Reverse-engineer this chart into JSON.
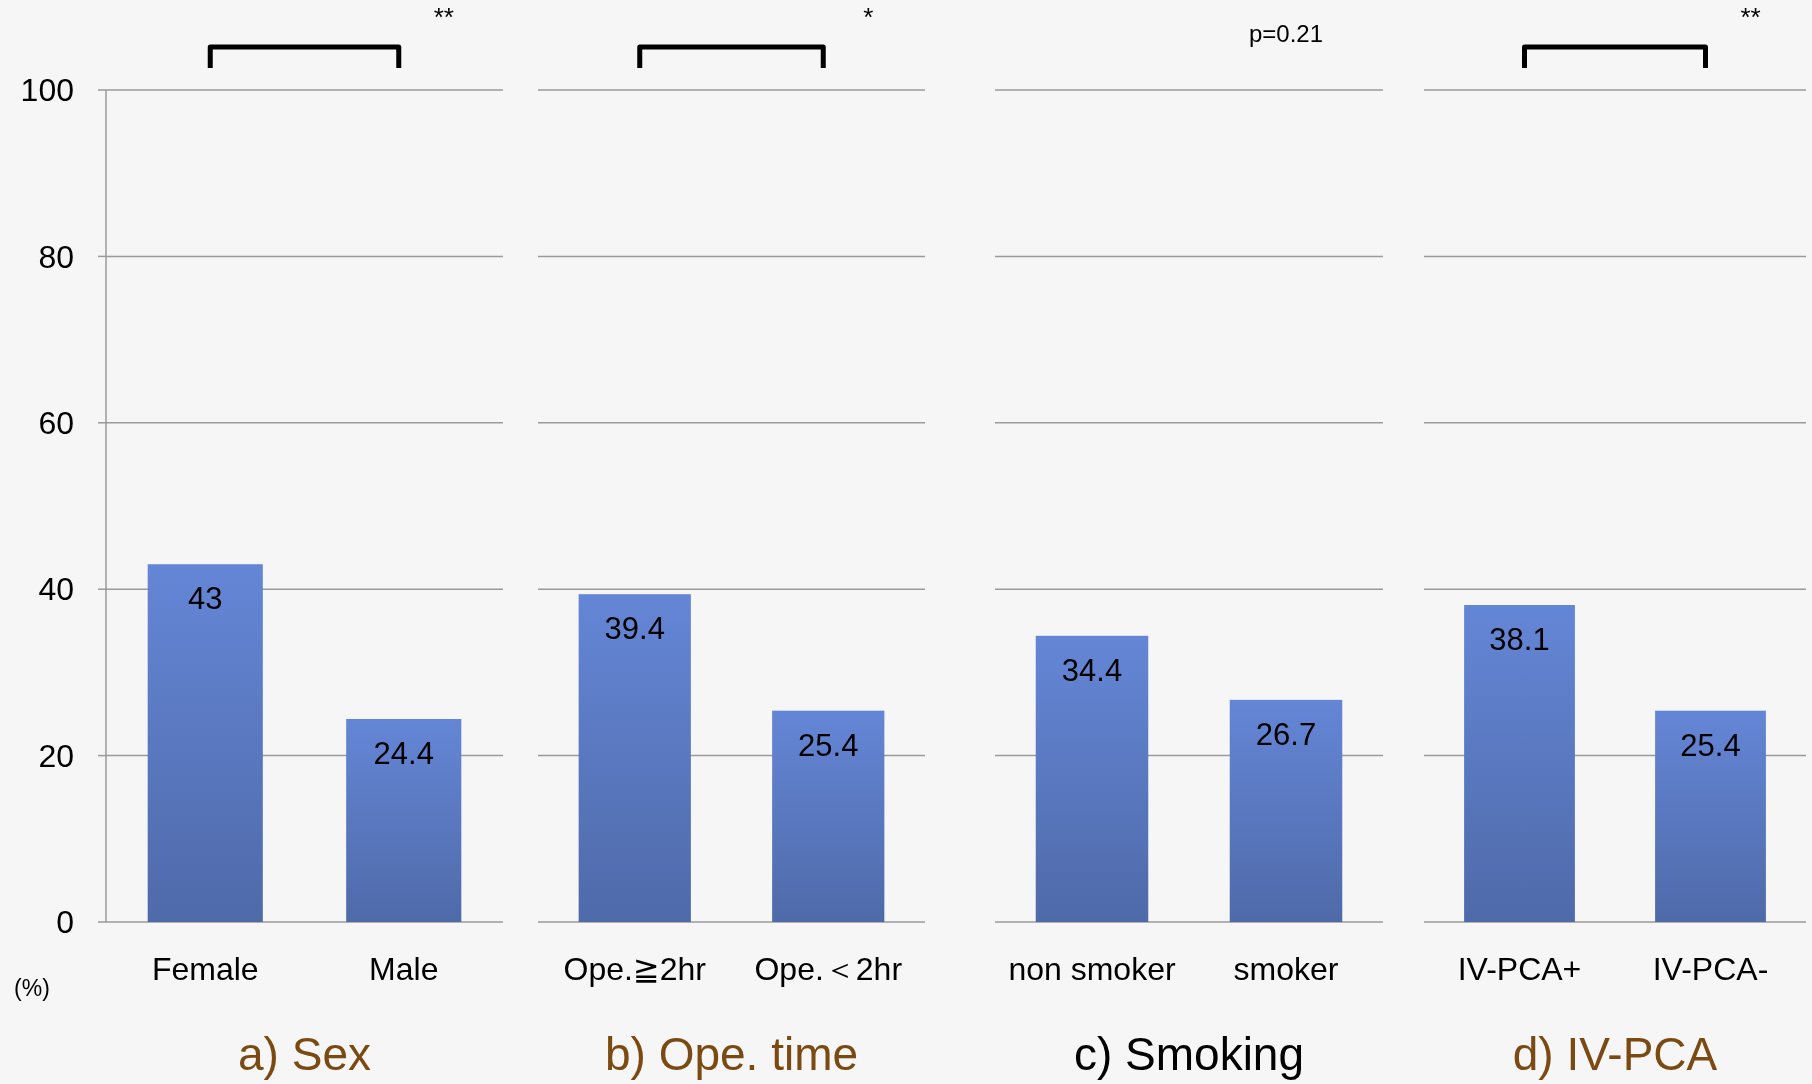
{
  "chart_data": [
    {
      "type": "bar",
      "title": "a) Sex",
      "categories": [
        "Female",
        "Male"
      ],
      "values": [
        43,
        24.4
      ],
      "color": "#5a78c0",
      "ylim": [
        0,
        100
      ],
      "yticks": [
        0,
        20,
        40,
        60,
        80,
        100
      ],
      "ylabel": "(%)",
      "grid": "y",
      "data_labels": true,
      "annotations": [
        "**"
      ]
    },
    {
      "type": "bar",
      "title": "b) Ope. time",
      "categories": [
        "Ope.≧2hr",
        "Ope.＜2hr"
      ],
      "values": [
        39.4,
        25.4
      ],
      "color": "#5a78c0",
      "ylim": [
        0,
        100
      ],
      "yticks": [
        0,
        20,
        40,
        60,
        80,
        100
      ],
      "grid": "y",
      "data_labels": true,
      "tick_labels": "x",
      "annotations": [
        "*"
      ]
    },
    {
      "type": "bar",
      "title": "c) Smoking",
      "categories": [
        "non smoker",
        "smoker"
      ],
      "values": [
        34.4,
        26.7
      ],
      "color": "#5a78c0",
      "ylim": [
        0,
        100
      ],
      "yticks": [
        0,
        20,
        40,
        60,
        80,
        100
      ],
      "grid": "y",
      "data_labels": true,
      "tick_labels": "x",
      "annotations": [
        "p=0.21"
      ]
    },
    {
      "type": "bar",
      "title": "d) IV-PCA",
      "categories": [
        "IV-PCA+",
        "IV-PCA-"
      ],
      "values": [
        38.1,
        25.4
      ],
      "color": "#5a78c0",
      "ylim": [
        0,
        100
      ],
      "yticks": [
        0,
        20,
        40,
        60,
        80,
        100
      ],
      "grid": "y",
      "data_labels": true,
      "tick_labels": "x",
      "annotations": [
        "**"
      ]
    }
  ]
}
